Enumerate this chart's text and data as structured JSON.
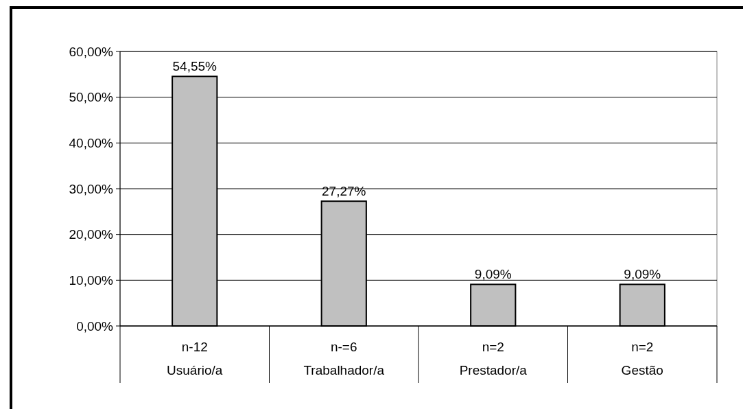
{
  "chart_data": {
    "type": "bar",
    "categories": [
      "n-12\nUsuário/a",
      "n-=6\nTrabalhador/a",
      "n=2\nPrestador/a",
      "n=2\nGestão"
    ],
    "values": [
      54.55,
      27.27,
      9.09,
      9.09
    ],
    "value_labels": [
      "54,55%",
      "27,27%",
      "9,09%",
      "9,09%"
    ],
    "color": "#c0c0c0",
    "ylim": [
      0,
      60
    ],
    "yticks": [
      {
        "value": 0,
        "label": "0,00%"
      },
      {
        "value": 10,
        "label": "10,00%"
      },
      {
        "value": 20,
        "label": "20,00%"
      },
      {
        "value": 30,
        "label": "30,00%"
      },
      {
        "value": 40,
        "label": "40,00%"
      },
      {
        "value": 50,
        "label": "50,00%"
      },
      {
        "value": 60,
        "label": "60,00%"
      }
    ],
    "grid": "y"
  }
}
